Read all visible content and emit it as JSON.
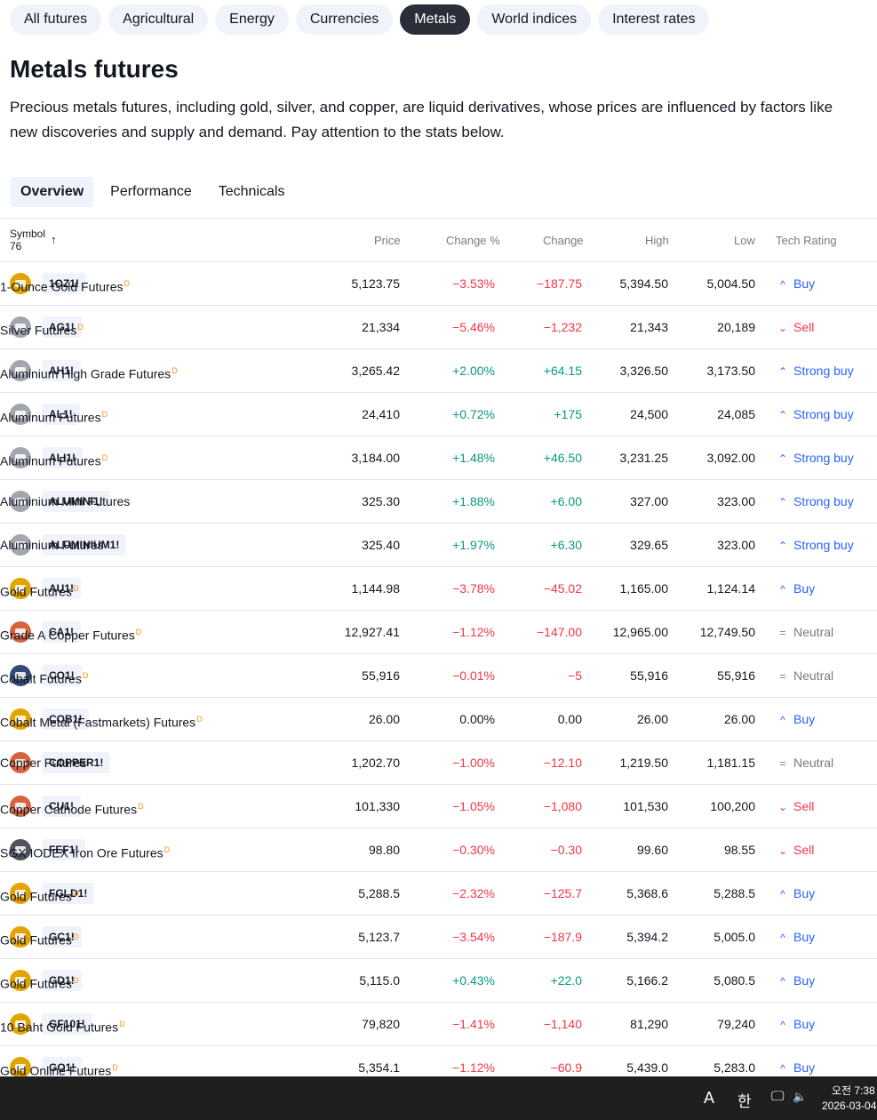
{
  "categories": [
    "All futures",
    "Agricultural",
    "Energy",
    "Currencies",
    "Metals",
    "World indices",
    "Interest rates"
  ],
  "active_category": "Metals",
  "page": {
    "title": "Metals futures",
    "description": "Precious metals futures, including gold, silver, and copper, are liquid derivatives, whose prices are influenced by factors like new discoveries and supply and demand. Pay attention to the stats below."
  },
  "tabs": [
    "Overview",
    "Performance",
    "Technicals"
  ],
  "active_tab": "Overview",
  "table": {
    "symbol_header": "Symbol",
    "symbol_count": "76",
    "sort_icon": "arrow-up-icon",
    "headers": {
      "price": "Price",
      "change_pct": "Change %",
      "change": "Change",
      "high": "High",
      "low": "Low",
      "rating": "Tech Rating"
    },
    "delayed_marker": "D",
    "rows": [
      {
        "logo": "gold",
        "ticker": "1OZ1!",
        "name": "1-Ounce Gold Futures",
        "delayed": true,
        "price": "5,123.75",
        "chg_pct": "−3.53%",
        "chg": "−187.75",
        "high": "5,394.50",
        "low": "5,004.50",
        "dir": "down",
        "rating": "Buy",
        "rating_icon": "caret-up-icon"
      },
      {
        "logo": "silver",
        "ticker": "AG1!",
        "name": "Silver Futures",
        "delayed": true,
        "price": "21,334",
        "chg_pct": "−5.46%",
        "chg": "−1,232",
        "high": "21,343",
        "low": "20,189",
        "dir": "down",
        "rating": "Sell",
        "rating_icon": "caret-down-icon"
      },
      {
        "logo": "silver",
        "ticker": "AH1!",
        "name": "Aluminium High Grade Futures",
        "delayed": true,
        "price": "3,265.42",
        "chg_pct": "+2.00%",
        "chg": "+64.15",
        "high": "3,326.50",
        "low": "3,173.50",
        "dir": "up",
        "rating": "Strong buy",
        "rating_icon": "double-caret-up-icon"
      },
      {
        "logo": "silver",
        "ticker": "AL1!",
        "name": "Aluminum Futures",
        "delayed": true,
        "price": "24,410",
        "chg_pct": "+0.72%",
        "chg": "+175",
        "high": "24,500",
        "low": "24,085",
        "dir": "up",
        "rating": "Strong buy",
        "rating_icon": "double-caret-up-icon"
      },
      {
        "logo": "silver",
        "ticker": "ALI1!",
        "name": "Aluminum Futures",
        "delayed": true,
        "price": "3,184.00",
        "chg_pct": "+1.48%",
        "chg": "+46.50",
        "high": "3,231.25",
        "low": "3,092.00",
        "dir": "up",
        "rating": "Strong buy",
        "rating_icon": "double-caret-up-icon"
      },
      {
        "logo": "silver",
        "ticker": "ALUMINI1!",
        "name": "Aluminium Mini Futures",
        "delayed": false,
        "price": "325.30",
        "chg_pct": "+1.88%",
        "chg": "+6.00",
        "high": "327.00",
        "low": "323.00",
        "dir": "up",
        "rating": "Strong buy",
        "rating_icon": "double-caret-up-icon"
      },
      {
        "logo": "silver",
        "ticker": "ALUMINIUM1!",
        "name": "Aluminium Futures",
        "delayed": false,
        "price": "325.40",
        "chg_pct": "+1.97%",
        "chg": "+6.30",
        "high": "329.65",
        "low": "323.00",
        "dir": "up",
        "rating": "Strong buy",
        "rating_icon": "double-caret-up-icon"
      },
      {
        "logo": "gold",
        "ticker": "AU1!",
        "name": "Gold Futures",
        "delayed": true,
        "price": "1,144.98",
        "chg_pct": "−3.78%",
        "chg": "−45.02",
        "high": "1,165.00",
        "low": "1,124.14",
        "dir": "down",
        "rating": "Buy",
        "rating_icon": "caret-up-icon"
      },
      {
        "logo": "copper",
        "ticker": "CA1!",
        "name": "Grade A Copper Futures",
        "delayed": true,
        "price": "12,927.41",
        "chg_pct": "−1.12%",
        "chg": "−147.00",
        "high": "12,965.00",
        "low": "12,749.50",
        "dir": "down",
        "rating": "Neutral",
        "rating_icon": "equals-icon"
      },
      {
        "logo": "cobalt",
        "ticker": "CO1!",
        "name": "Cobalt Futures",
        "delayed": true,
        "price": "55,916",
        "chg_pct": "−0.01%",
        "chg": "−5",
        "high": "55,916",
        "low": "55,916",
        "dir": "down",
        "rating": "Neutral",
        "rating_icon": "equals-icon"
      },
      {
        "logo": "gold",
        "ticker": "COB1!",
        "name": "Cobalt Metal (Fastmarkets) Futures",
        "delayed": true,
        "price": "26.00",
        "chg_pct": "0.00%",
        "chg": "0.00",
        "high": "26.00",
        "low": "26.00",
        "dir": "flat",
        "rating": "Buy",
        "rating_icon": "caret-up-icon"
      },
      {
        "logo": "copper",
        "ticker": "COPPER1!",
        "name": "Copper Futures",
        "delayed": false,
        "price": "1,202.70",
        "chg_pct": "−1.00%",
        "chg": "−12.10",
        "high": "1,219.50",
        "low": "1,181.15",
        "dir": "down",
        "rating": "Neutral",
        "rating_icon": "equals-icon"
      },
      {
        "logo": "copper",
        "ticker": "CU1!",
        "name": "Copper Cathode Futures",
        "delayed": true,
        "price": "101,330",
        "chg_pct": "−1.05%",
        "chg": "−1,080",
        "high": "101,530",
        "low": "100,200",
        "dir": "down",
        "rating": "Sell",
        "rating_icon": "caret-down-icon"
      },
      {
        "logo": "iron",
        "ticker": "FEF1!",
        "name": "SGX IODEX Iron Ore Futures",
        "delayed": true,
        "price": "98.80",
        "chg_pct": "−0.30%",
        "chg": "−0.30",
        "high": "99.60",
        "low": "98.55",
        "dir": "down",
        "rating": "Sell",
        "rating_icon": "caret-down-icon"
      },
      {
        "logo": "gold",
        "ticker": "FGLD1!",
        "name": "Gold Futures",
        "delayed": true,
        "price": "5,288.5",
        "chg_pct": "−2.32%",
        "chg": "−125.7",
        "high": "5,368.6",
        "low": "5,288.5",
        "dir": "down",
        "rating": "Buy",
        "rating_icon": "caret-up-icon"
      },
      {
        "logo": "gold",
        "ticker": "GC1!",
        "name": "Gold Futures",
        "delayed": true,
        "price": "5,123.7",
        "chg_pct": "−3.54%",
        "chg": "−187.9",
        "high": "5,394.2",
        "low": "5,005.0",
        "dir": "down",
        "rating": "Buy",
        "rating_icon": "caret-up-icon"
      },
      {
        "logo": "gold",
        "ticker": "GD1!",
        "name": "Gold Futures",
        "delayed": true,
        "price": "5,115.0",
        "chg_pct": "+0.43%",
        "chg": "+22.0",
        "high": "5,166.2",
        "low": "5,080.5",
        "dir": "up",
        "rating": "Buy",
        "rating_icon": "caret-up-icon"
      },
      {
        "logo": "gold",
        "ticker": "GF101!",
        "name": "10 Baht Gold Futures",
        "delayed": true,
        "price": "79,820",
        "chg_pct": "−1.41%",
        "chg": "−1,140",
        "high": "81,290",
        "low": "79,240",
        "dir": "down",
        "rating": "Buy",
        "rating_icon": "caret-up-icon"
      },
      {
        "logo": "gold",
        "ticker": "GO1!",
        "name": "Gold Online Futures",
        "delayed": true,
        "price": "5,354.1",
        "chg_pct": "−1.12%",
        "chg": "−60.9",
        "high": "5,439.0",
        "low": "5,283.0",
        "dir": "down",
        "rating": "Buy",
        "rating_icon": "caret-up-icon"
      }
    ]
  },
  "colors": {
    "up": "#089981",
    "down": "#f23645",
    "buy": "#2962ff",
    "neutral": "#787b86",
    "gold": "#e2a400",
    "silver": "#a3a6af",
    "copper": "#d6643f",
    "cobalt": "#314a78",
    "iron": "#50535e"
  },
  "taskbar": {
    "ime_letter": "A",
    "ime_lang": "한",
    "network_icon": "network-icon",
    "volume_icon": "volume-icon",
    "time": "오전 7:38",
    "date": "2026-03-04"
  }
}
